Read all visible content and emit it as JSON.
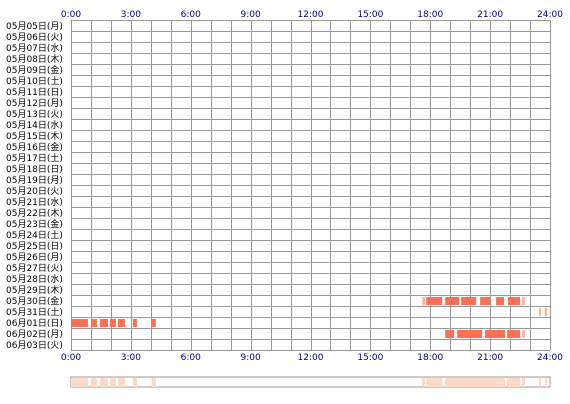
{
  "chart_data": {
    "type": "heatmap",
    "x_ticks": [
      "0:00",
      "3:00",
      "6:00",
      "9:00",
      "12:00",
      "15:00",
      "18:00",
      "21:00",
      "24:00"
    ],
    "x_range_hours": [
      0,
      24
    ],
    "rows": [
      "05月05日(月)",
      "05月06日(火)",
      "05月07日(水)",
      "05月08日(木)",
      "05月09日(金)",
      "05月10日(土)",
      "05月11日(日)",
      "05月12日(月)",
      "05月13日(火)",
      "05月14日(水)",
      "05月15日(木)",
      "05月16日(金)",
      "05月17日(土)",
      "05月18日(日)",
      "05月19日(月)",
      "05月20日(火)",
      "05月21日(水)",
      "05月22日(木)",
      "05月23日(金)",
      "05月24日(土)",
      "05月25日(日)",
      "05月26日(月)",
      "05月27日(火)",
      "05月28日(水)",
      "05月29日(木)",
      "05月30日(金)",
      "05月31日(土)",
      "06月01日(日)",
      "06月02日(月)",
      "06月03日(火)"
    ],
    "grid": true,
    "colors": {
      "bar": "#fa7052",
      "bar_light": "#f9b8a4",
      "summary": "#fcd9c4",
      "grid": "#999999",
      "axis_text": "#000080"
    },
    "segments": [
      {
        "row": 25,
        "start": 17.6,
        "end": 17.75,
        "shade": "light"
      },
      {
        "row": 25,
        "start": 17.8,
        "end": 18.6
      },
      {
        "row": 25,
        "start": 18.75,
        "end": 19.45
      },
      {
        "row": 25,
        "start": 19.55,
        "end": 20.3
      },
      {
        "row": 25,
        "start": 20.5,
        "end": 21.0
      },
      {
        "row": 25,
        "start": 21.3,
        "end": 21.7
      },
      {
        "row": 25,
        "start": 21.9,
        "end": 22.5
      },
      {
        "row": 25,
        "start": 22.6,
        "end": 22.75,
        "shade": "light"
      },
      {
        "row": 26,
        "start": 23.45,
        "end": 23.55,
        "shade": "light"
      },
      {
        "row": 26,
        "start": 23.75,
        "end": 23.85,
        "shade": "light"
      },
      {
        "row": 27,
        "start": 0.0,
        "end": 0.85
      },
      {
        "row": 27,
        "start": 1.0,
        "end": 1.3
      },
      {
        "row": 27,
        "start": 1.45,
        "end": 1.85
      },
      {
        "row": 27,
        "start": 1.95,
        "end": 2.25
      },
      {
        "row": 27,
        "start": 2.35,
        "end": 2.7
      },
      {
        "row": 27,
        "start": 3.1,
        "end": 3.3
      },
      {
        "row": 27,
        "start": 4.05,
        "end": 4.25
      },
      {
        "row": 28,
        "start": 18.75,
        "end": 19.2
      },
      {
        "row": 28,
        "start": 19.35,
        "end": 20.6
      },
      {
        "row": 28,
        "start": 20.75,
        "end": 21.75
      },
      {
        "row": 28,
        "start": 21.85,
        "end": 22.5
      },
      {
        "row": 28,
        "start": 22.6,
        "end": 22.75,
        "shade": "light"
      }
    ]
  }
}
